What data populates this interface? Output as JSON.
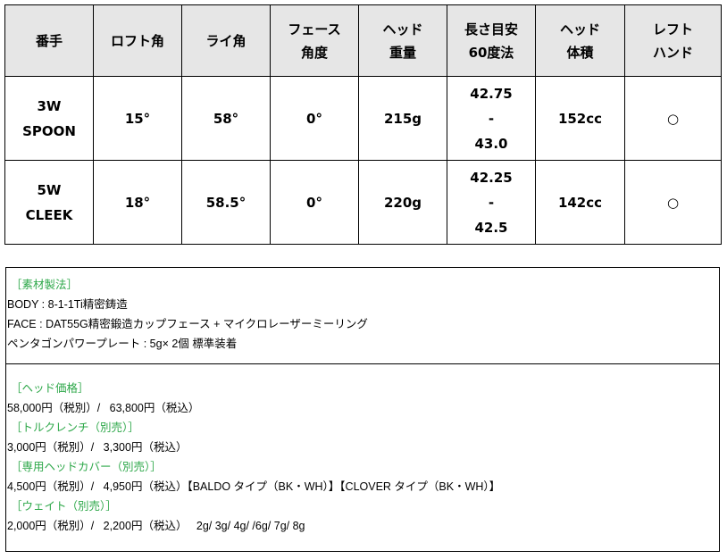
{
  "table": {
    "headers": [
      [
        "番手"
      ],
      [
        "ロフト角"
      ],
      [
        "ライ角"
      ],
      [
        "フェース",
        "角度"
      ],
      [
        "ヘッド",
        "重量"
      ],
      [
        "長さ目安",
        "60度法"
      ],
      [
        "ヘッド",
        "体積"
      ],
      [
        "レフト",
        "ハンド"
      ]
    ],
    "rows": [
      {
        "club": [
          "3W",
          "SPOON"
        ],
        "loft": "15°",
        "lie": "58°",
        "face": "0°",
        "weight": "215g",
        "length": [
          "42.75",
          "-",
          "43.0"
        ],
        "volume": "152cc",
        "left": "○"
      },
      {
        "club": [
          "5W",
          "CLEEK"
        ],
        "loft": "18°",
        "lie": "58.5°",
        "face": "0°",
        "weight": "220g",
        "length": [
          "42.25",
          "-",
          "42.5"
        ],
        "volume": "142cc",
        "left": "○"
      }
    ]
  },
  "materials": {
    "heading": "［素材製法］",
    "lines": [
      "BODY : 8-1-1Ti精密鋳造",
      "FACE : DAT55G精密鍛造カップフェース + マイクロレーザーミーリング",
      "ペンタゴンパワープレート : 5g× 2個 標準装着"
    ]
  },
  "pricing": [
    {
      "heading": "［ヘッド価格］",
      "text": "58,000円（税別）/   63,800円（税込）"
    },
    {
      "heading": "［トルクレンチ（別売）］",
      "text": "3,000円（税別）/   3,300円（税込）"
    },
    {
      "heading": "［専用ヘッドカバー（別売）］",
      "text": "4,500円（税別）/   4,950円（税込）【BALDO タイプ（BK・WH）】【CLOVER タイプ（BK・WH）】"
    },
    {
      "heading": "［ウェイト（別売）］",
      "text": "2,000円（税別）/   2,200円（税込）   2g/ 3g/ 4g/ /6g/ 7g/ 8g"
    }
  ],
  "colors": {
    "heading_green": "#2ea84a",
    "header_bg": "#e6e6e6"
  }
}
